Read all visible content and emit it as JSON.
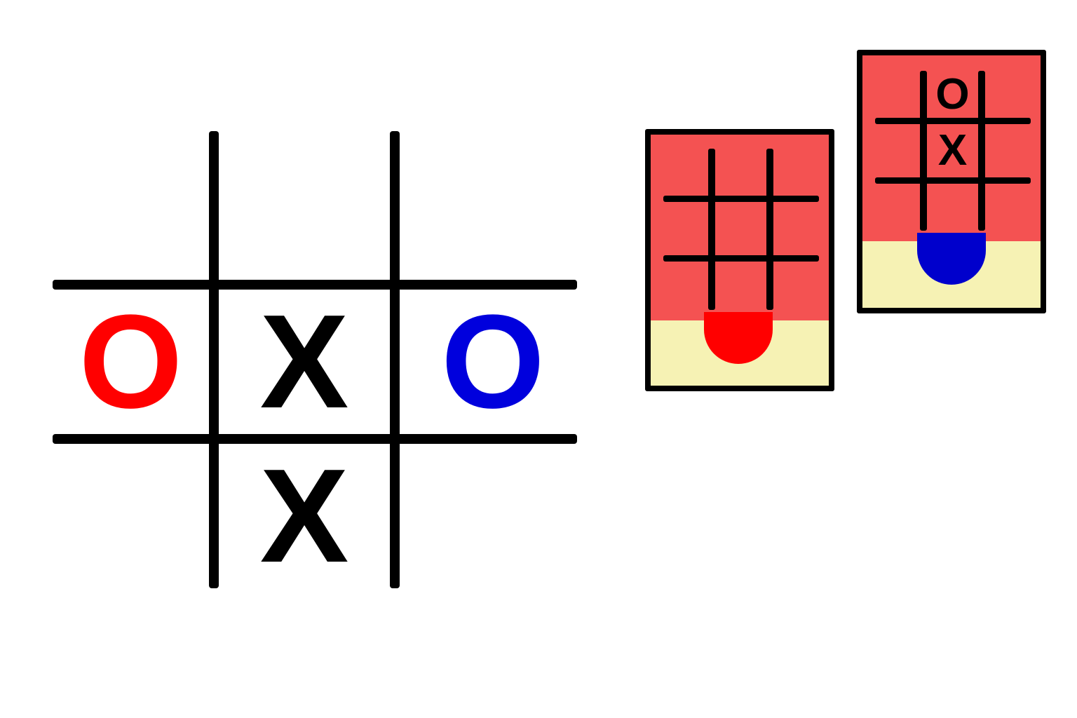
{
  "board": {
    "grid": [
      [
        "",
        "",
        ""
      ],
      [
        "O",
        "X",
        "O"
      ],
      [
        "",
        "X",
        ""
      ]
    ],
    "mark_colors": [
      [
        "",
        "",
        ""
      ],
      [
        "#ff0000",
        "#000000",
        "#0000dd"
      ],
      [
        "",
        "#000000",
        ""
      ]
    ]
  },
  "cards": [
    {
      "background_color": "#f45252",
      "footer_color": "#f6f2b4",
      "pip_color": "#ff0000",
      "mini_grid": [
        [
          "",
          "",
          ""
        ],
        [
          "",
          "",
          ""
        ],
        [
          "",
          "",
          ""
        ]
      ]
    },
    {
      "background_color": "#f45252",
      "footer_color": "#f6f2b4",
      "pip_color": "#0000cc",
      "mini_grid": [
        [
          "",
          "O",
          ""
        ],
        [
          "",
          "X",
          ""
        ],
        [
          "",
          "",
          ""
        ]
      ]
    }
  ]
}
